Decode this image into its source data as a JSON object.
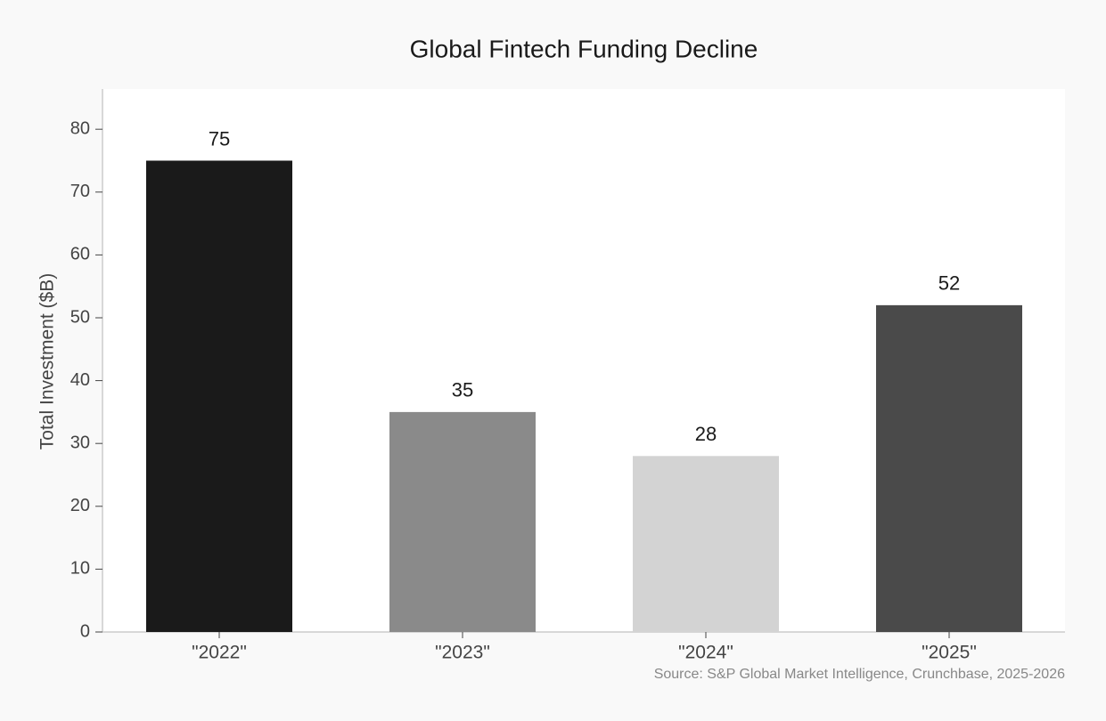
{
  "chart_data": {
    "type": "bar",
    "title": "Global Fintech Funding Decline",
    "y_label": "Total Investment ($B)",
    "categories": [
      "\"2022\"",
      "\"2023\"",
      "\"2024\"",
      "\"2025\""
    ],
    "values": [
      75,
      35,
      28,
      52
    ],
    "colors": [
      "#1a1a1a",
      "#8a8a8a",
      "#d3d3d3",
      "#4a4a4a"
    ],
    "ylim": [
      0,
      86.4
    ],
    "yticks": [
      0,
      10,
      20,
      30,
      40,
      50,
      60,
      70,
      80
    ],
    "annotation": "Source: S&P Global Market Intelligence, Crunchbase, 2025-2026"
  }
}
